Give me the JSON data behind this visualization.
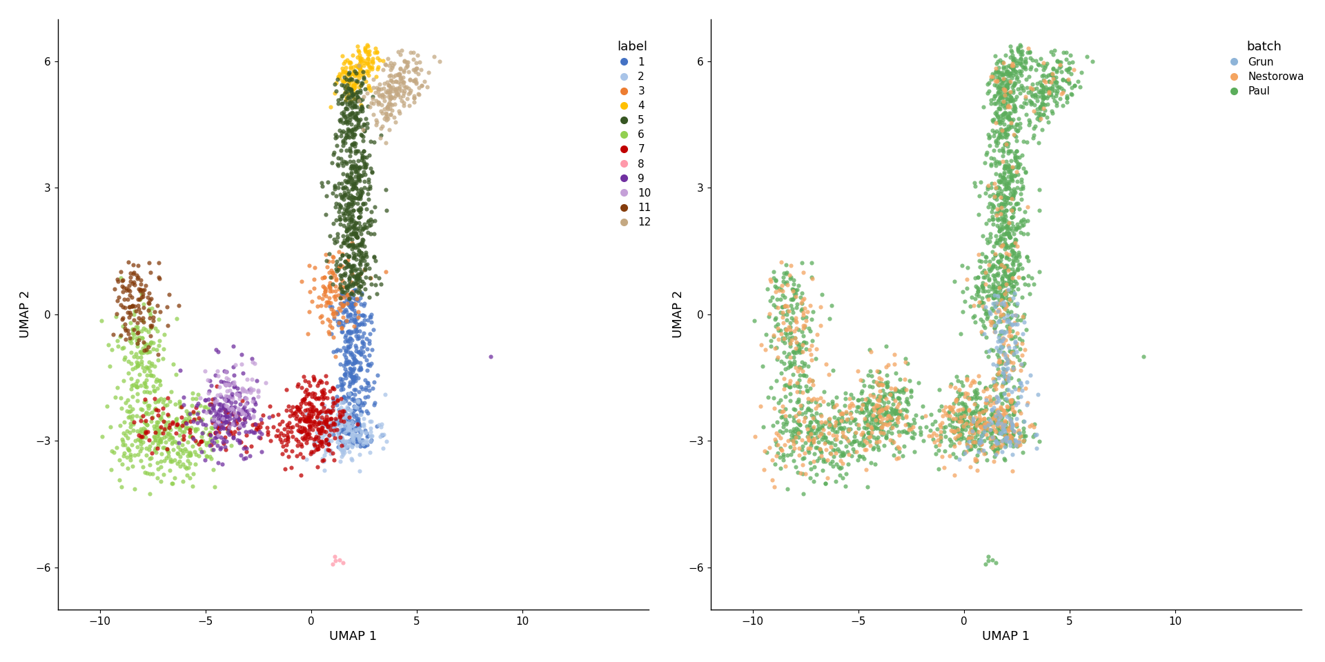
{
  "label_colors": {
    "1": "#4472C4",
    "2": "#A9C4E8",
    "3": "#ED7D31",
    "4": "#FFC000",
    "5": "#375623",
    "6": "#92D050",
    "7": "#C00000",
    "8": "#FF99AA",
    "9": "#7030A0",
    "10": "#C5A0D8",
    "11": "#843C0C",
    "12": "#C4A882"
  },
  "batch_colors": {
    "Grun": "#8EB4D8",
    "Nestorowa": "#F4A460",
    "Paul": "#5BAD5B"
  },
  "xlim": [
    -12,
    16
  ],
  "ylim": [
    -7,
    7
  ],
  "xticks": [
    -10,
    -5,
    0,
    5,
    10
  ],
  "yticks": [
    -6,
    -3,
    0,
    3,
    6
  ],
  "xlabel": "UMAP 1",
  "ylabel": "UMAP 2",
  "left_legend_title": "label",
  "right_legend_title": "batch",
  "point_size": 20,
  "alpha": 0.75,
  "background_color": "#FFFFFF",
  "seed": 42
}
